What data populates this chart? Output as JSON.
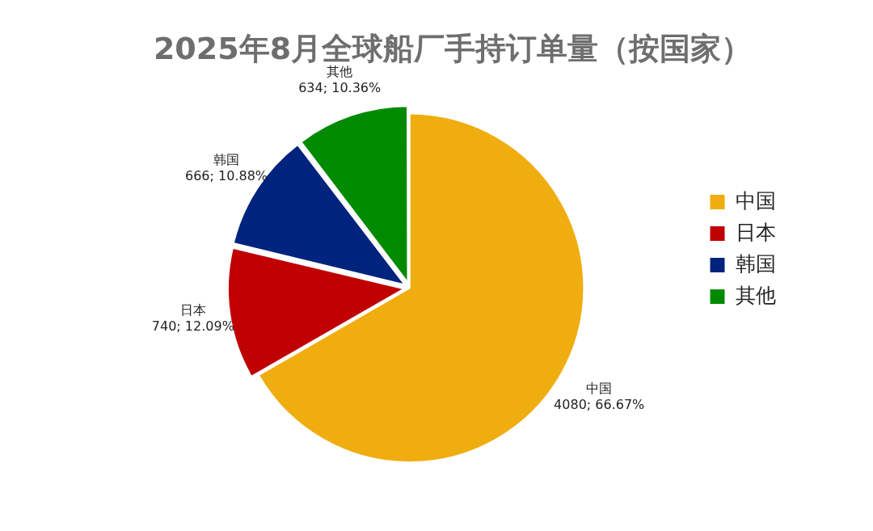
{
  "chart_data": {
    "type": "pie",
    "title": "2025年8月全球船厂手持订单量（按国家）",
    "categories": [
      "中国",
      "日本",
      "韩国",
      "其他"
    ],
    "values": [
      4080,
      740,
      666,
      634
    ],
    "value_labels": [
      "4080; 66.67%",
      "740; 12.09%",
      "666; 10.88%",
      "634; 10.36%"
    ],
    "colors": [
      "#f0ad10",
      "#c00000",
      "#00237e",
      "#008a00"
    ],
    "legend": "right"
  }
}
